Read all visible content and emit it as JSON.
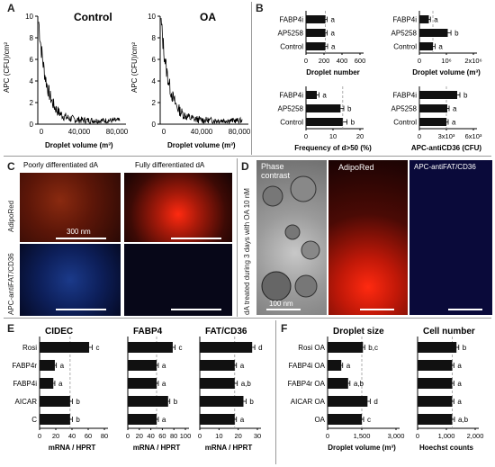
{
  "panel_letters": {
    "a": "A",
    "b": "B",
    "c": "C",
    "d": "D",
    "e": "E",
    "f": "F"
  },
  "colors": {
    "bar": "#111111",
    "grid_dash": "#999999",
    "axis": "#000000"
  },
  "panel_a": {
    "left": {
      "title": "Control",
      "ylabel": "APC (CFU)/cm²",
      "xlabel": "Droplet volume (m³)",
      "yticks": [
        "0",
        "2",
        "4",
        "6",
        "8",
        "10"
      ],
      "xticks": [
        "0",
        "40,000",
        "80,000"
      ]
    },
    "right": {
      "title": "OA",
      "ylabel": "APC (CFU)/cm²",
      "xlabel": "Droplet volume (m³)",
      "yticks": [
        "0",
        "2",
        "4",
        "6",
        "8",
        "10"
      ],
      "xticks": [
        "0",
        "40,000",
        "80,000"
      ]
    }
  },
  "panel_c": {
    "col_left": "Poorly differentiated dA",
    "col_right": "Fully differentiated dA",
    "row_top": "AdipoRed",
    "row_bottom": "APC-antiFAT/CD36",
    "scale": "300 nm"
  },
  "panel_d": {
    "side_label": "dA treated during 3 days with OA 10 nM",
    "phase": "Phase contrast",
    "adipo": "AdipoRed",
    "apc": "APC-antiFAT/CD36",
    "scale": "100 nm"
  },
  "chart_data": [
    {
      "type": "bar",
      "orientation": "horizontal",
      "panel": "B1",
      "categories": [
        "FABP4i",
        "AP5258",
        "Control"
      ],
      "values": [
        215,
        215,
        215
      ],
      "errors": [
        20,
        20,
        25
      ],
      "letters": [
        "a",
        "a",
        "a"
      ],
      "xlabel": "Droplet number",
      "xticks": [
        "0",
        "200",
        "400",
        "600"
      ],
      "xlim": [
        0,
        600
      ],
      "ref_line": 215
    },
    {
      "type": "bar",
      "orientation": "horizontal",
      "panel": "B2",
      "categories": [
        "FABP4i",
        "AP5258",
        "Control"
      ],
      "values": [
        350000,
        1050000,
        500000
      ],
      "errors": [
        60000,
        120000,
        80000
      ],
      "letters": [
        "a",
        "b",
        "a"
      ],
      "xlabel": "Droplet volume (m³)",
      "xticks": [
        "0",
        "10⁶",
        "2x10⁶"
      ],
      "xlim": [
        0,
        2000000
      ],
      "ref_line": 500000
    },
    {
      "type": "bar",
      "orientation": "horizontal",
      "panel": "B3",
      "categories": [
        "FABP4i",
        "AP5258",
        "Control"
      ],
      "values": [
        5,
        16,
        17
      ],
      "errors": [
        1,
        1.5,
        2
      ],
      "letters": [
        "a",
        "b",
        "b"
      ],
      "xlabel": "Frequency of d>50 (%)",
      "xticks": [
        "0",
        "10",
        "20"
      ],
      "xlim": [
        0,
        25
      ],
      "ref_line": 17
    },
    {
      "type": "bar",
      "orientation": "horizontal",
      "panel": "B4",
      "categories": [
        "FABP4i",
        "AP5258",
        "Control"
      ],
      "values": [
        4200,
        3100,
        3000
      ],
      "errors": [
        300,
        200,
        200
      ],
      "letters": [
        "b",
        "a",
        "a"
      ],
      "xlabel": "APC-antiCD36 (CFU)",
      "xticks": [
        "0",
        "3x10³",
        "6x10³"
      ],
      "xlim": [
        0,
        6000
      ],
      "ref_line": 3000
    },
    {
      "type": "bar",
      "orientation": "horizontal",
      "panel": "E1",
      "title": "CIDEC",
      "categories": [
        "Rosi",
        "FABP4r",
        "FABP4i",
        "AICAR",
        "C"
      ],
      "values": [
        65,
        20,
        18,
        40,
        40
      ],
      "errors": [
        4,
        2,
        2,
        3,
        3
      ],
      "letters": [
        "c",
        "a",
        "a",
        "b",
        "b"
      ],
      "xlabel": "mRNA /  HPRT",
      "xticks": [
        "0",
        "20",
        "40",
        "60",
        "80"
      ],
      "xlim": [
        0,
        85
      ],
      "ref_line": 40
    },
    {
      "type": "bar",
      "orientation": "horizontal",
      "panel": "E2",
      "title": "FABP4",
      "categories": [
        "Rosi",
        "FABP4r",
        "FABP4i",
        "AICAR",
        "C"
      ],
      "values": [
        78,
        50,
        50,
        70,
        50
      ],
      "errors": [
        4,
        3,
        3,
        3,
        3
      ],
      "letters": [
        "c",
        "a",
        "a",
        "b",
        "a"
      ],
      "xlabel": "mRNA /  HPRT",
      "xticks": [
        "0",
        "20",
        "40",
        "60",
        "80",
        "100"
      ],
      "xlim": [
        0,
        100
      ],
      "ref_line": 50
    },
    {
      "type": "bar",
      "orientation": "horizontal",
      "panel": "E3",
      "title": "FAT/CD36",
      "categories": [
        "Rosi",
        "FABP4r",
        "FABP4i",
        "AICAR",
        "C"
      ],
      "values": [
        30,
        20,
        20,
        25,
        20
      ],
      "errors": [
        1.5,
        1,
        1.5,
        1.5,
        1
      ],
      "letters": [
        "d",
        "a",
        "a,b",
        "b",
        "a"
      ],
      "xlabel": "mRNA /  HPRT",
      "xticks": [
        "0",
        "10",
        "20",
        "30"
      ],
      "xlim": [
        0,
        33
      ],
      "ref_line": 20
    },
    {
      "type": "bar",
      "orientation": "horizontal",
      "panel": "F1",
      "title": "Droplet size",
      "categories": [
        "Rosi OA",
        "FABP4i OA",
        "FABP4r OA",
        "AICAR OA",
        "OA"
      ],
      "values": [
        1550,
        600,
        900,
        1750,
        1500
      ],
      "errors": [
        80,
        60,
        80,
        120,
        80
      ],
      "letters": [
        "b,c",
        "a",
        "a,b",
        "d",
        "c"
      ],
      "xlabel": "Droplet volume (m³)",
      "xticks": [
        "0",
        "1,500",
        "3,000"
      ],
      "xlim": [
        0,
        3000
      ],
      "ref_line": 1500
    },
    {
      "type": "bar",
      "orientation": "horizontal",
      "panel": "F2",
      "title": "Cell number",
      "categories": [
        "Rosi OA",
        "FABP4i OA",
        "FABP4r OA",
        "AICAR OA",
        "OA"
      ],
      "values": [
        1350,
        1200,
        1200,
        1200,
        1200
      ],
      "errors": [
        80,
        60,
        60,
        60,
        80
      ],
      "letters": [
        "b",
        "a",
        "a",
        "a",
        "a,b"
      ],
      "xlabel": "Hoechst counts",
      "xticks": [
        "0",
        "1,000",
        "2,000"
      ],
      "xlim": [
        0,
        2000
      ],
      "ref_line": 1200
    }
  ]
}
